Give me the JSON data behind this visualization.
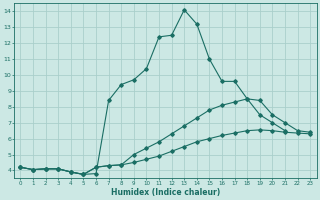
{
  "xlabel": "Humidex (Indice chaleur)",
  "bg_color": "#cce8e4",
  "grid_color": "#aacfcb",
  "line_color": "#1a6e64",
  "xlim": [
    -0.5,
    23.5
  ],
  "ylim": [
    3.5,
    14.5
  ],
  "yticks": [
    4,
    5,
    6,
    7,
    8,
    9,
    10,
    11,
    12,
    13,
    14
  ],
  "xticks": [
    0,
    1,
    2,
    3,
    4,
    5,
    6,
    7,
    8,
    9,
    10,
    11,
    12,
    13,
    14,
    15,
    16,
    17,
    18,
    19,
    20,
    21,
    22,
    23
  ],
  "series": [
    {
      "x": [
        0,
        1,
        2,
        3,
        4,
        5,
        6,
        7,
        8,
        9,
        10,
        11,
        12,
        13,
        14,
        15,
        16,
        17,
        18,
        19,
        20,
        21
      ],
      "y": [
        4.2,
        4.05,
        4.1,
        4.1,
        3.9,
        3.75,
        3.8,
        8.4,
        9.4,
        9.7,
        10.4,
        12.4,
        12.5,
        14.1,
        13.2,
        11.0,
        9.6,
        9.6,
        8.5,
        7.5,
        7.0,
        6.5
      ]
    },
    {
      "x": [
        0,
        1,
        2,
        3,
        4,
        5,
        6,
        7,
        8,
        9,
        10,
        11,
        12,
        13,
        14,
        15,
        16,
        17,
        18,
        19,
        20,
        21,
        22,
        23
      ],
      "y": [
        4.2,
        4.05,
        4.1,
        4.1,
        3.9,
        3.75,
        4.2,
        4.3,
        4.35,
        5.0,
        5.4,
        5.8,
        6.3,
        6.8,
        7.3,
        7.8,
        8.1,
        8.3,
        8.5,
        8.4,
        7.5,
        7.0,
        6.5,
        6.4
      ]
    },
    {
      "x": [
        0,
        1,
        2,
        3,
        4,
        5,
        6,
        7,
        8,
        9,
        10,
        11,
        12,
        13,
        14,
        15,
        16,
        17,
        18,
        19,
        20,
        21,
        22,
        23
      ],
      "y": [
        4.2,
        4.05,
        4.1,
        4.1,
        3.9,
        3.75,
        4.2,
        4.3,
        4.35,
        4.5,
        4.7,
        4.9,
        5.2,
        5.5,
        5.8,
        6.0,
        6.2,
        6.35,
        6.5,
        6.55,
        6.5,
        6.4,
        6.35,
        6.3
      ]
    }
  ]
}
